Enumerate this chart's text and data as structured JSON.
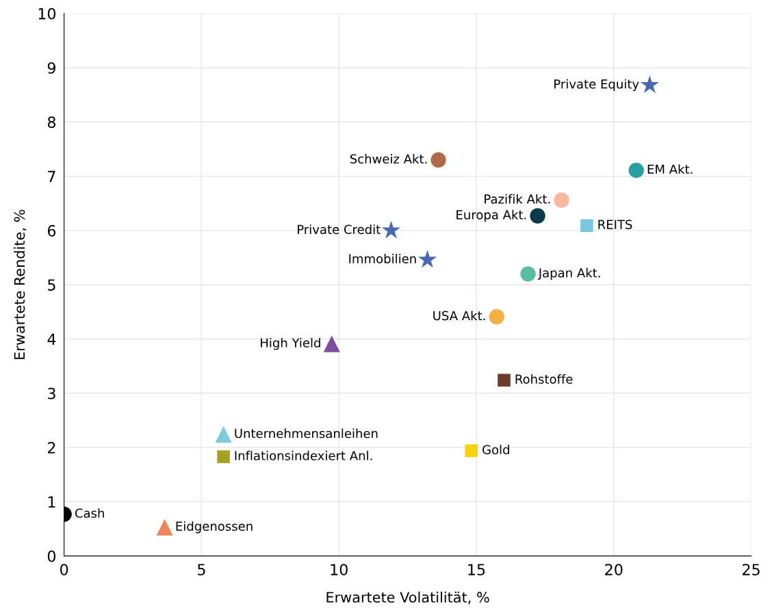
{
  "chart_data": {
    "type": "scatter",
    "xlabel": "Erwartete Volatilität, %",
    "ylabel": "Erwartete Rendite, %",
    "xlim": [
      0,
      25
    ],
    "xticks": [
      0,
      5,
      10,
      15,
      20,
      25
    ],
    "ylim": [
      0,
      10
    ],
    "yticks": [
      0,
      1,
      2,
      3,
      4,
      5,
      6,
      7,
      8,
      9,
      10
    ],
    "grid": true,
    "series": [
      {
        "name": "Cash",
        "color": "#000000",
        "marker": "circle",
        "x": [
          0
        ],
        "values": [
          0.77
        ]
      },
      {
        "name": "Eidgenossen",
        "color": "#f0845a",
        "marker": "triangle",
        "x": [
          3.66
        ],
        "values": [
          0.53
        ]
      },
      {
        "name": "Unternehmensanleihen",
        "color": "#7ccbdc",
        "marker": "triangle",
        "x": [
          5.8
        ],
        "values": [
          2.24
        ]
      },
      {
        "name": "Inflationsindexiert Anl.",
        "color": "#a8a020",
        "marker": "square",
        "x": [
          5.8
        ],
        "values": [
          1.83
        ]
      },
      {
        "name": "High Yield",
        "color": "#7f4ea0",
        "marker": "triangle",
        "x": [
          9.74
        ],
        "values": [
          3.91
        ]
      },
      {
        "name": "Private Credit",
        "color": "#4a68b0",
        "marker": "star",
        "x": [
          11.9
        ],
        "values": [
          6.0
        ]
      },
      {
        "name": "Immobilien",
        "color": "#4a68b0",
        "marker": "star",
        "x": [
          13.22
        ],
        "values": [
          5.46
        ]
      },
      {
        "name": "Schweiz Akt.",
        "color": "#b06a48",
        "marker": "circle",
        "x": [
          13.62
        ],
        "values": [
          7.3
        ]
      },
      {
        "name": "USA Akt.",
        "color": "#f4b040",
        "marker": "circle",
        "x": [
          15.74
        ],
        "values": [
          4.41
        ]
      },
      {
        "name": "Gold",
        "color": "#f8d010",
        "marker": "square",
        "x": [
          14.82
        ],
        "values": [
          1.94
        ]
      },
      {
        "name": "Rohstoffe",
        "color": "#6a3e28",
        "marker": "square",
        "x": [
          16.01
        ],
        "values": [
          3.24
        ]
      },
      {
        "name": "Japan Akt.",
        "color": "#5abca0",
        "marker": "circle",
        "x": [
          16.88
        ],
        "values": [
          5.2
        ]
      },
      {
        "name": "Europa Akt.",
        "color": "#0a3a48",
        "marker": "circle",
        "x": [
          17.23
        ],
        "values": [
          6.27
        ]
      },
      {
        "name": "Pazifik Akt.",
        "color": "#f8b8a0",
        "marker": "circle",
        "x": [
          18.1
        ],
        "values": [
          6.56
        ]
      },
      {
        "name": "REITS",
        "color": "#78c8e0",
        "marker": "square",
        "x": [
          19.02
        ],
        "values": [
          6.09
        ]
      },
      {
        "name": "EM Akt.",
        "color": "#28a0a0",
        "marker": "circle",
        "x": [
          20.82
        ],
        "values": [
          7.11
        ]
      },
      {
        "name": "Private Equity",
        "color": "#4a68b0",
        "marker": "star",
        "x": [
          21.31
        ],
        "values": [
          8.68
        ]
      }
    ]
  }
}
